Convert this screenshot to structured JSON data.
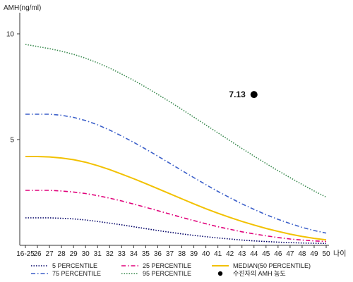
{
  "chart_data": {
    "type": "line",
    "ylabel": "AMH(ng/ml)",
    "xlabel": "나이",
    "ylim": [
      0,
      11
    ],
    "yticks": [
      5,
      10
    ],
    "grid": false,
    "legend_position": "bottom",
    "categories": [
      "16-25",
      "26",
      "27",
      "28",
      "29",
      "30",
      "31",
      "32",
      "33",
      "34",
      "35",
      "36",
      "37",
      "38",
      "39",
      "40",
      "41",
      "42",
      "43",
      "44",
      "45",
      "46",
      "47",
      "48",
      "49",
      "50"
    ],
    "series": [
      {
        "name": "5 PERCENTILE",
        "color": "#000066",
        "dash": "dot",
        "values": [
          1.3,
          1.3,
          1.3,
          1.28,
          1.25,
          1.2,
          1.13,
          1.05,
          0.97,
          0.88,
          0.79,
          0.7,
          0.62,
          0.54,
          0.47,
          0.41,
          0.35,
          0.3,
          0.25,
          0.21,
          0.18,
          0.15,
          0.13,
          0.11,
          0.1,
          0.09
        ]
      },
      {
        "name": "25 PERCENTILE",
        "color": "#e0007a",
        "dash": "dashdot",
        "values": [
          2.6,
          2.6,
          2.6,
          2.57,
          2.52,
          2.45,
          2.35,
          2.23,
          2.1,
          1.95,
          1.8,
          1.64,
          1.48,
          1.32,
          1.17,
          1.02,
          0.88,
          0.76,
          0.64,
          0.54,
          0.45,
          0.37,
          0.3,
          0.25,
          0.21,
          0.18
        ]
      },
      {
        "name": "MEDIAN(50 PERCENTILE)",
        "color": "#f2c100",
        "dash": "solid",
        "values": [
          4.2,
          4.2,
          4.18,
          4.13,
          4.05,
          3.93,
          3.77,
          3.58,
          3.37,
          3.15,
          2.92,
          2.68,
          2.44,
          2.2,
          1.96,
          1.73,
          1.52,
          1.32,
          1.13,
          0.96,
          0.8,
          0.66,
          0.53,
          0.42,
          0.33,
          0.26
        ]
      },
      {
        "name": "75 PERCENTILE",
        "color": "#3b5fc9",
        "dash": "dashdot",
        "values": [
          6.2,
          6.2,
          6.2,
          6.15,
          6.05,
          5.9,
          5.7,
          5.45,
          5.17,
          4.87,
          4.55,
          4.22,
          3.88,
          3.54,
          3.2,
          2.87,
          2.55,
          2.25,
          1.96,
          1.7,
          1.45,
          1.23,
          1.03,
          0.85,
          0.7,
          0.58
        ]
      },
      {
        "name": "95 PERCENTILE",
        "color": "#3a8a4f",
        "dash": "dot",
        "values": [
          9.5,
          9.4,
          9.3,
          9.18,
          9.03,
          8.85,
          8.63,
          8.38,
          8.1,
          7.8,
          7.48,
          7.14,
          6.79,
          6.43,
          6.06,
          5.69,
          5.32,
          4.95,
          4.58,
          4.22,
          3.87,
          3.53,
          3.2,
          2.88,
          2.57,
          2.28
        ]
      }
    ],
    "point": {
      "name": "수진자의 AMH 농도",
      "label": "7.13",
      "category": "44",
      "value": 7.13,
      "color": "#000000"
    }
  }
}
